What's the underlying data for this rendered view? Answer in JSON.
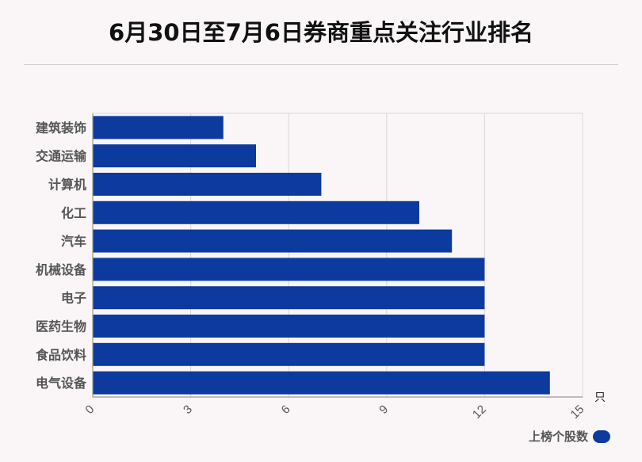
{
  "title": "6月30日至7月6日券商重点关注行业排名",
  "colors": {
    "bar": "#0d3a9e",
    "grid": "#d8d8d8",
    "axis": "#999999"
  },
  "chart_data": {
    "type": "bar",
    "orientation": "horizontal",
    "categories": [
      "建筑装饰",
      "交通运输",
      "计算机",
      "化工",
      "汽车",
      "机械设备",
      "电子",
      "医药生物",
      "食品饮料",
      "电气设备"
    ],
    "series": [
      {
        "name": "上榜个股数",
        "values": [
          4,
          5,
          7,
          10,
          11,
          12,
          12,
          12,
          12,
          14
        ]
      }
    ],
    "xlim": [
      0,
      15
    ],
    "xticks": [
      "0",
      "3",
      "6",
      "9",
      "12",
      "15"
    ],
    "xunit": "只",
    "grid": true,
    "legend_position": "bottom-right"
  }
}
